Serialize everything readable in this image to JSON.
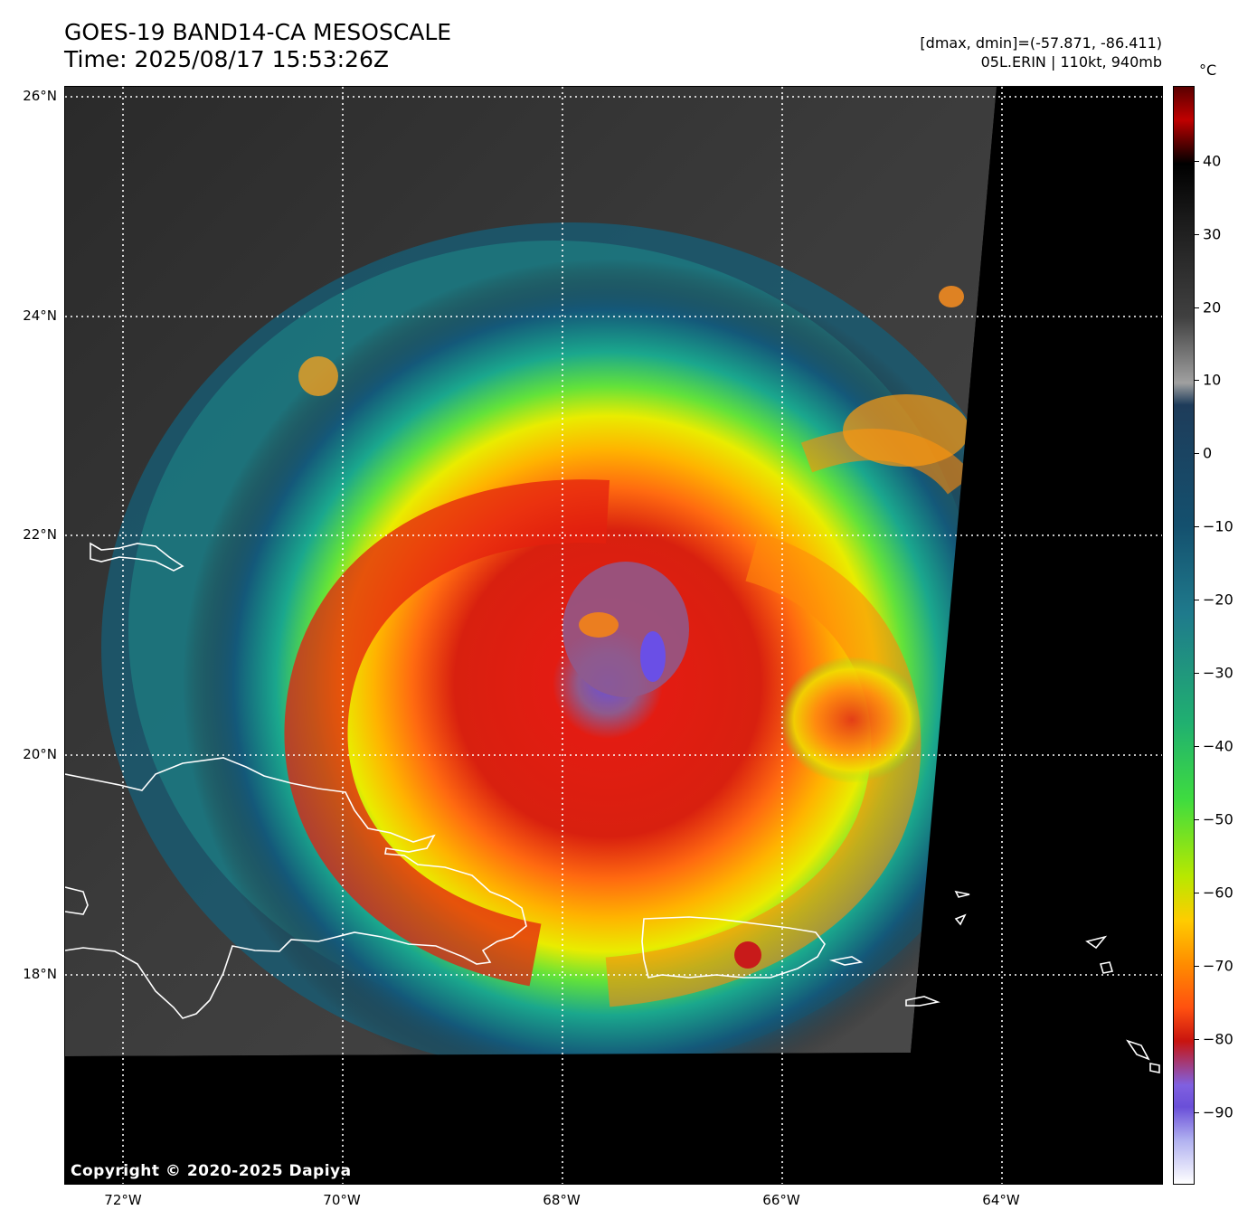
{
  "title": {
    "line1": "GOES-19 BAND14-CA MESOSCALE",
    "line2": "Time: 2025/08/17 15:53:26Z"
  },
  "info": {
    "range": "[dmax, dmin]=(-57.871, -86.411)",
    "storm": "05L.ERIN | 110kt, 940mb"
  },
  "map": {
    "lat_labels": [
      "26°N",
      "24°N",
      "22°N",
      "20°N",
      "18°N"
    ],
    "lon_labels": [
      "72°W",
      "70°W",
      "68°W",
      "66°W",
      "64°W"
    ],
    "copyright": "Copyright © 2020-2025 Dapiya",
    "storm_center": {
      "lat": 21.1,
      "lon": -67.4
    }
  },
  "colorbar": {
    "unit": "°C",
    "labels": [
      "40",
      "30",
      "20",
      "10",
      "0",
      "−10",
      "−20",
      "−30",
      "−40",
      "−50",
      "−60",
      "−70",
      "−80",
      "−90"
    ],
    "colors": {
      "warm": "#000000",
      "cloud_top_gray": "#8c8c8c",
      "teal": "#1f7a8c",
      "green": "#3fdc3f",
      "yellow": "#e8e800",
      "orange": "#ff8c00",
      "red": "#e01a12",
      "purple": "#7a55e6",
      "white": "#ffffff"
    }
  }
}
